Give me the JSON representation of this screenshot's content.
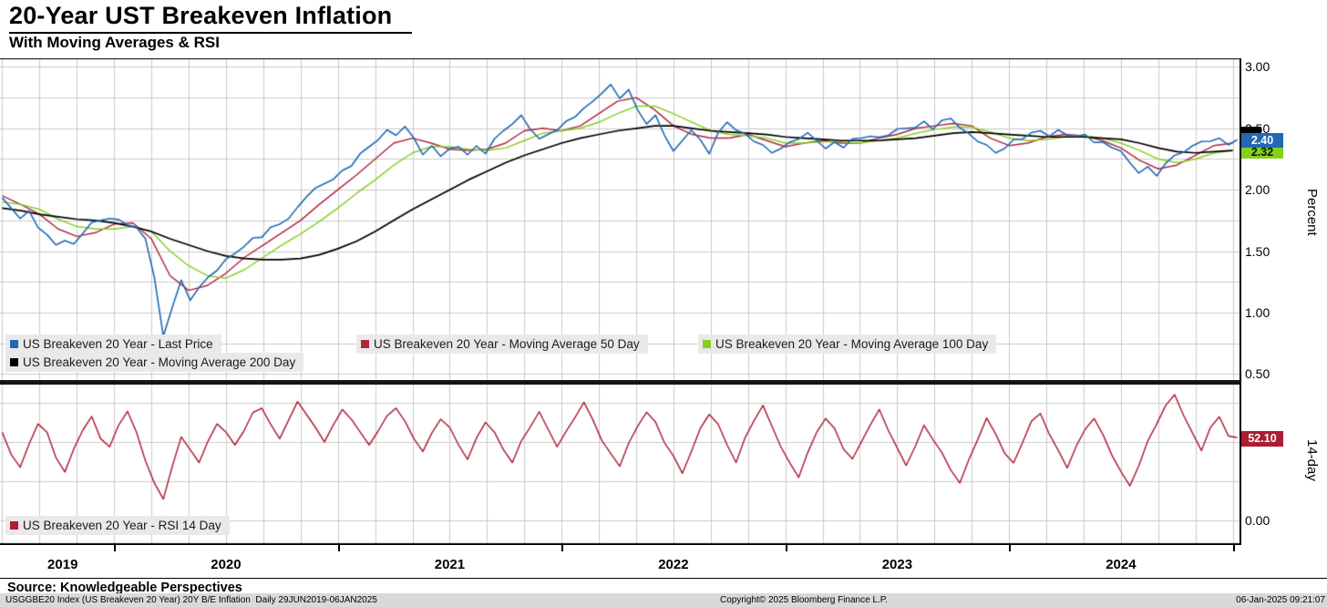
{
  "header": {
    "title": "20-Year UST Breakeven Inflation",
    "subtitle": "With Moving Averages & RSI"
  },
  "footer": {
    "source": "Source: Knowledgeable Perspectives",
    "security": "USGGBE20 Index (US Breakeven 20 Year) 20Y B/E Inflation  Daily 29JUN2019-06JAN2025",
    "copyright": "Copyright© 2025 Bloomberg Finance L.P.",
    "datetime": "06-Jan-2025 09:21:07"
  },
  "colors": {
    "last_price_blue": "#2269b5",
    "ma50_red": "#b2243c",
    "ma100_green": "#84d022",
    "ma200_black": "#000000",
    "rsi_red": "#ad1c33",
    "legend_bg": "#e9e9e9",
    "footer_bg": "#d9d9d9",
    "grid": "#cacaca"
  },
  "chart_data": [
    {
      "type": "line",
      "panel": "main",
      "title": "20-Year UST Breakeven Inflation",
      "subtitle": "With Moving Averages & RSI",
      "ylabel": "Percent",
      "x_range": [
        2019.49,
        2025.03
      ],
      "t_start": 2019.5,
      "t_end": 2025.02,
      "ylim": [
        0.45,
        3.07
      ],
      "grid_on": true,
      "grid_y": [
        0.5,
        0.75,
        1.0,
        1.25,
        1.5,
        1.75,
        2.0,
        2.25,
        2.5,
        2.75,
        3.0
      ],
      "y_ticks": [
        {
          "v": 3.0,
          "label": "3.00"
        },
        {
          "v": 2.5,
          "label": "2.50"
        },
        {
          "v": 2.0,
          "label": "2.00"
        },
        {
          "v": 1.5,
          "label": "1.50"
        },
        {
          "v": 1.0,
          "label": "1.00"
        },
        {
          "v": 0.5,
          "label": "0.50"
        }
      ],
      "x_years": [
        "2019",
        "2020",
        "2021",
        "2022",
        "2023",
        "2024"
      ],
      "series": [
        {
          "name": "US Breakeven 20 Year - Last Price",
          "color": "#2269b5",
          "last_label": "2.40",
          "last_value": 2.4,
          "values": [
            1.92,
            1.85,
            1.78,
            1.82,
            1.7,
            1.62,
            1.55,
            1.6,
            1.55,
            1.65,
            1.72,
            1.75,
            1.78,
            1.75,
            1.72,
            1.68,
            1.6,
            1.3,
            0.8,
            1.05,
            1.25,
            1.1,
            1.22,
            1.28,
            1.35,
            1.42,
            1.48,
            1.55,
            1.6,
            1.62,
            1.68,
            1.72,
            1.78,
            1.85,
            1.95,
            2.0,
            2.05,
            2.1,
            2.15,
            2.2,
            2.28,
            2.35,
            2.42,
            2.48,
            2.45,
            2.5,
            2.42,
            2.3,
            2.35,
            2.28,
            2.32,
            2.35,
            2.3,
            2.35,
            2.3,
            2.4,
            2.48,
            2.55,
            2.6,
            2.5,
            2.4,
            2.45,
            2.5,
            2.55,
            2.6,
            2.65,
            2.72,
            2.8,
            2.85,
            2.75,
            2.8,
            2.65,
            2.55,
            2.6,
            2.45,
            2.3,
            2.4,
            2.5,
            2.4,
            2.3,
            2.45,
            2.55,
            2.5,
            2.45,
            2.4,
            2.35,
            2.3,
            2.35,
            2.38,
            2.42,
            2.45,
            2.4,
            2.35,
            2.38,
            2.35,
            2.4,
            2.42,
            2.45,
            2.42,
            2.45,
            2.48,
            2.5,
            2.52,
            2.55,
            2.5,
            2.55,
            2.58,
            2.52,
            2.45,
            2.4,
            2.35,
            2.3,
            2.35,
            2.4,
            2.42,
            2.45,
            2.48,
            2.45,
            2.48,
            2.45,
            2.42,
            2.45,
            2.4,
            2.38,
            2.35,
            2.3,
            2.22,
            2.15,
            2.18,
            2.12,
            2.2,
            2.28,
            2.32,
            2.35,
            2.4,
            2.38,
            2.42,
            2.38,
            2.4
          ]
        },
        {
          "name": "US Breakeven 20 Year - Moving Average 50 Day",
          "color": "#b2243c",
          "t_end": 2025.0,
          "values": [
            1.95,
            1.88,
            1.8,
            1.68,
            1.62,
            1.65,
            1.72,
            1.73,
            1.6,
            1.3,
            1.18,
            1.22,
            1.32,
            1.45,
            1.55,
            1.65,
            1.75,
            1.88,
            2.0,
            2.12,
            2.25,
            2.38,
            2.42,
            2.38,
            2.33,
            2.32,
            2.33,
            2.38,
            2.48,
            2.5,
            2.48,
            2.52,
            2.62,
            2.72,
            2.75,
            2.65,
            2.52,
            2.45,
            2.42,
            2.42,
            2.45,
            2.4,
            2.35,
            2.38,
            2.4,
            2.38,
            2.38,
            2.42,
            2.45,
            2.5,
            2.52,
            2.54,
            2.52,
            2.42,
            2.36,
            2.38,
            2.43,
            2.45,
            2.44,
            2.4,
            2.34,
            2.24,
            2.17,
            2.2,
            2.28,
            2.36,
            2.38
          ]
        },
        {
          "name": "US Breakeven 20 Year - Moving Average 100 Day",
          "color": "#84d022",
          "last_label": "2.32",
          "last_value": 2.32,
          "t_end": 2025.0,
          "values": [
            1.9,
            1.88,
            1.84,
            1.76,
            1.7,
            1.68,
            1.68,
            1.7,
            1.66,
            1.5,
            1.38,
            1.3,
            1.28,
            1.35,
            1.45,
            1.55,
            1.64,
            1.74,
            1.85,
            1.97,
            2.08,
            2.2,
            2.3,
            2.35,
            2.35,
            2.33,
            2.32,
            2.34,
            2.4,
            2.46,
            2.48,
            2.5,
            2.55,
            2.62,
            2.68,
            2.68,
            2.62,
            2.55,
            2.48,
            2.45,
            2.44,
            2.42,
            2.38,
            2.38,
            2.39,
            2.39,
            2.38,
            2.4,
            2.42,
            2.46,
            2.49,
            2.51,
            2.51,
            2.47,
            2.42,
            2.4,
            2.41,
            2.43,
            2.44,
            2.42,
            2.38,
            2.32,
            2.25,
            2.22,
            2.25,
            2.3,
            2.32
          ]
        },
        {
          "name": "US Breakeven 20 Year - Moving Average 200 Day",
          "color": "#000000",
          "t_end": 2025.0,
          "values": [
            1.85,
            1.83,
            1.8,
            1.78,
            1.76,
            1.75,
            1.73,
            1.7,
            1.66,
            1.6,
            1.55,
            1.5,
            1.46,
            1.44,
            1.43,
            1.43,
            1.44,
            1.47,
            1.52,
            1.58,
            1.66,
            1.75,
            1.84,
            1.92,
            2.0,
            2.08,
            2.15,
            2.22,
            2.28,
            2.33,
            2.38,
            2.42,
            2.45,
            2.48,
            2.5,
            2.52,
            2.52,
            2.5,
            2.48,
            2.47,
            2.46,
            2.45,
            2.43,
            2.42,
            2.41,
            2.4,
            2.4,
            2.4,
            2.41,
            2.42,
            2.44,
            2.46,
            2.47,
            2.46,
            2.45,
            2.44,
            2.43,
            2.43,
            2.43,
            2.42,
            2.41,
            2.38,
            2.34,
            2.31,
            2.3,
            2.31,
            2.32
          ]
        }
      ]
    },
    {
      "type": "line",
      "panel": "rsi",
      "title": "RSI 14 Day",
      "ylabel": "14-day",
      "x_range": [
        2019.49,
        2025.03
      ],
      "t_start": 2019.5,
      "t_end": 2025.02,
      "ylim": [
        -15.6,
        86.4
      ],
      "grid_on": true,
      "grid_y": [
        0,
        25,
        50,
        75
      ],
      "y_ticks": [
        {
          "v": 0,
          "label": "0.00"
        }
      ],
      "series": [
        {
          "name": "US Breakeven 20 Year - RSI 14 Day",
          "color": "#ad1c33",
          "last_label": "52.10",
          "last_value": 52.1,
          "values": [
            55,
            42,
            35,
            48,
            62,
            55,
            40,
            32,
            45,
            58,
            65,
            52,
            48,
            60,
            70,
            55,
            38,
            25,
            13,
            35,
            52,
            45,
            38,
            50,
            62,
            55,
            48,
            58,
            68,
            72,
            60,
            52,
            65,
            75,
            68,
            58,
            50,
            62,
            70,
            65,
            55,
            48,
            58,
            66,
            72,
            62,
            52,
            45,
            55,
            65,
            58,
            48,
            40,
            52,
            63,
            55,
            45,
            38,
            50,
            60,
            68,
            58,
            48,
            56,
            66,
            74,
            64,
            52,
            42,
            35,
            48,
            60,
            70,
            62,
            50,
            40,
            30,
            45,
            58,
            68,
            60,
            48,
            38,
            52,
            64,
            72,
            60,
            48,
            36,
            28,
            42,
            56,
            66,
            58,
            46,
            38,
            50,
            62,
            70,
            58,
            45,
            35,
            48,
            60,
            52,
            42,
            32,
            25,
            38,
            52,
            64,
            55,
            44,
            36,
            50,
            62,
            68,
            56,
            44,
            34,
            46,
            58,
            66,
            54,
            42,
            30,
            22,
            36,
            50,
            62,
            72,
            80,
            68,
            55,
            45,
            58,
            66,
            55,
            52.1
          ]
        }
      ]
    }
  ]
}
